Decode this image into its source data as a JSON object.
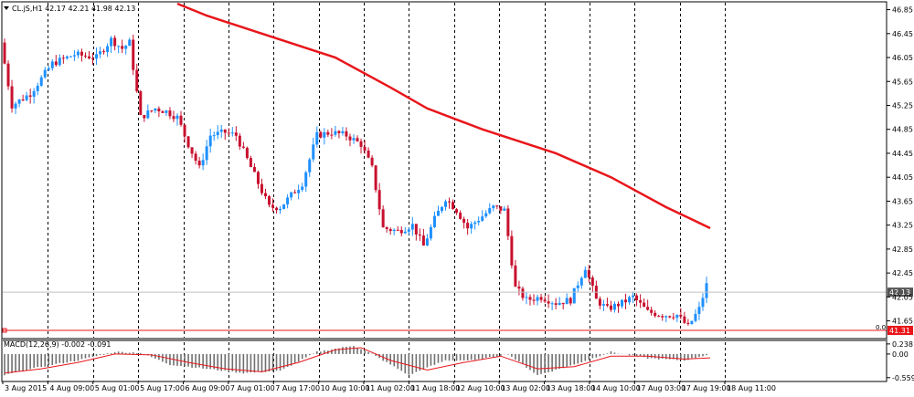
{
  "window": {
    "title": "CL.jS,H1  42.17 42.21 41.98 42.13",
    "menu_icon": "triangle-down-icon"
  },
  "colors": {
    "background": "#ffffff",
    "candle_up": "#1e90ff",
    "candle_down": "#c8102e",
    "moving_average": "#e8161b",
    "macd_histogram": "#a0a0a0",
    "macd_signal": "#e8161b",
    "price_tag": "#e8161b",
    "current_price_tag": "#555555",
    "grid": "#000000"
  },
  "chart_data": [
    {
      "type": "candlestick",
      "symbol": "CL.jS",
      "timeframe": "H1",
      "ohlc": {
        "open": 42.17,
        "high": 42.21,
        "low": 41.98,
        "close": 42.13
      },
      "ylim": [
        41.4,
        46.95
      ],
      "y_ticks": [
        "46.85",
        "46.45",
        "46.05",
        "45.65",
        "45.25",
        "44.85",
        "44.45",
        "44.05",
        "43.65",
        "43.25",
        "42.85",
        "42.45",
        "42.05",
        "41.65"
      ],
      "x_ticks": [
        "3 Aug 2015",
        "4 Aug 09:00",
        "5 Aug 01:00",
        "5 Aug 17:00",
        "6 Aug 09:00",
        "7 Aug 01:00",
        "7 Aug 17:00",
        "10 Aug 10:00",
        "11 Aug 02:00",
        "11 Aug 18:00",
        "12 Aug 10:00",
        "13 Aug 02:00",
        "13 Aug 18:00",
        "14 Aug 10:00",
        "17 Aug 03:00",
        "17 Aug 19:00",
        "18 Aug 11:00"
      ],
      "current_price_label": "42.13",
      "current_price": 42.13,
      "level_label": "41.31",
      "level_price": 41.31,
      "level_marker_label": "0.0",
      "grid": "vertical dashed",
      "close_path": [
        [
          0,
          46.3
        ],
        [
          3,
          45.25
        ],
        [
          8,
          45.45
        ],
        [
          14,
          45.95
        ],
        [
          20,
          46.1
        ],
        [
          26,
          46.05
        ],
        [
          30,
          46.35
        ],
        [
          33,
          46.2
        ],
        [
          35,
          46.3
        ],
        [
          38,
          45.05
        ],
        [
          42,
          45.2
        ],
        [
          45,
          45.15
        ],
        [
          48,
          45.05
        ],
        [
          51,
          44.6
        ],
        [
          54,
          44.2
        ],
        [
          57,
          44.75
        ],
        [
          61,
          44.8
        ],
        [
          64,
          44.75
        ],
        [
          67,
          44.35
        ],
        [
          70,
          43.95
        ],
        [
          73,
          43.55
        ],
        [
          76,
          43.55
        ],
        [
          79,
          43.75
        ],
        [
          82,
          43.95
        ],
        [
          86,
          44.75
        ],
        [
          90,
          44.8
        ],
        [
          94,
          44.75
        ],
        [
          98,
          44.6
        ],
        [
          101,
          44.2
        ],
        [
          104,
          43.2
        ],
        [
          108,
          43.15
        ],
        [
          112,
          43.25
        ],
        [
          115,
          42.9
        ],
        [
          118,
          43.35
        ],
        [
          121,
          43.7
        ],
        [
          124,
          43.5
        ],
        [
          127,
          43.2
        ],
        [
          130,
          43.35
        ],
        [
          134,
          43.55
        ],
        [
          137,
          43.5
        ],
        [
          140,
          42.2
        ],
        [
          143,
          42.0
        ],
        [
          147,
          42.05
        ],
        [
          151,
          41.95
        ],
        [
          155,
          42.0
        ],
        [
          159,
          42.55
        ],
        [
          162,
          42.0
        ],
        [
          165,
          41.85
        ],
        [
          169,
          41.95
        ],
        [
          172,
          42.05
        ],
        [
          176,
          41.8
        ],
        [
          180,
          41.75
        ],
        [
          184,
          41.75
        ],
        [
          187,
          41.55
        ],
        [
          190,
          41.85
        ],
        [
          192,
          42.25
        ]
      ],
      "moving_average": [
        [
          47,
          46.95
        ],
        [
          55,
          46.75
        ],
        [
          70,
          46.45
        ],
        [
          90,
          46.05
        ],
        [
          105,
          45.55
        ],
        [
          115,
          45.2
        ],
        [
          130,
          44.85
        ],
        [
          150,
          44.45
        ],
        [
          165,
          44.05
        ],
        [
          180,
          43.55
        ],
        [
          192,
          43.2
        ]
      ]
    },
    {
      "type": "macd_histogram",
      "title": "MACD(12,26,9) -0.002 -0.091",
      "parameters": [
        12,
        26,
        9
      ],
      "macd_value": -0.002,
      "signal_value": -0.091,
      "ylim": [
        -0.65,
        0.3
      ],
      "y_ticks": [
        "0.238",
        "0.00",
        "-0.559"
      ],
      "histogram_path": [
        [
          0,
          -0.5
        ],
        [
          10,
          -0.3
        ],
        [
          20,
          -0.15
        ],
        [
          30,
          0.05
        ],
        [
          37,
          0.03
        ],
        [
          45,
          -0.25
        ],
        [
          55,
          -0.35
        ],
        [
          65,
          -0.45
        ],
        [
          75,
          -0.4
        ],
        [
          85,
          0.05
        ],
        [
          95,
          0.2
        ],
        [
          100,
          0.0
        ],
        [
          110,
          -0.5
        ],
        [
          120,
          -0.15
        ],
        [
          128,
          -0.15
        ],
        [
          137,
          0.0
        ],
        [
          145,
          -0.5
        ],
        [
          155,
          -0.25
        ],
        [
          165,
          0.05
        ],
        [
          175,
          -0.1
        ],
        [
          185,
          -0.15
        ],
        [
          192,
          -0.002
        ]
      ],
      "signal_path": [
        [
          0,
          -0.45
        ],
        [
          10,
          -0.35
        ],
        [
          20,
          -0.2
        ],
        [
          30,
          0.0
        ],
        [
          40,
          -0.02
        ],
        [
          50,
          -0.2
        ],
        [
          60,
          -0.35
        ],
        [
          70,
          -0.42
        ],
        [
          80,
          -0.2
        ],
        [
          90,
          0.1
        ],
        [
          97,
          0.15
        ],
        [
          105,
          -0.15
        ],
        [
          115,
          -0.38
        ],
        [
          125,
          -0.2
        ],
        [
          135,
          -0.05
        ],
        [
          145,
          -0.35
        ],
        [
          155,
          -0.3
        ],
        [
          165,
          -0.05
        ],
        [
          175,
          -0.05
        ],
        [
          185,
          -0.12
        ],
        [
          192,
          -0.091
        ]
      ]
    }
  ]
}
